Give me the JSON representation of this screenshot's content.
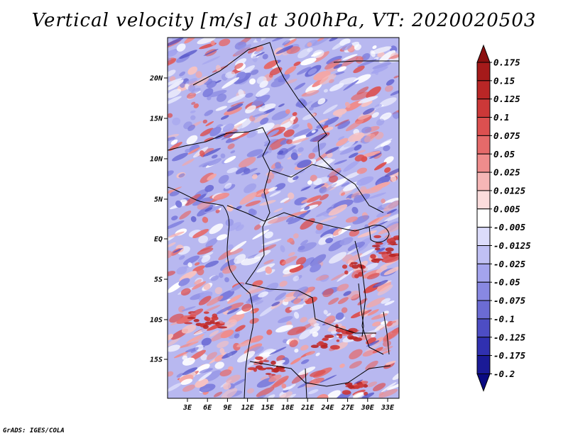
{
  "title": "Vertical velocity [m/s] at 300hPa, VT: 2020020503",
  "credit": "GrADS: IGES/COLA",
  "map": {
    "lat_labels": [
      "20N",
      "15N",
      "10N",
      "5N",
      "EQ",
      "5S",
      "10S",
      "15S"
    ],
    "lon_labels": [
      "3E",
      "6E",
      "9E",
      "12E",
      "15E",
      "18E",
      "21E",
      "24E",
      "27E",
      "30E",
      "33E"
    ]
  },
  "colorbar": {
    "levels": [
      "0.175",
      "0.15",
      "0.125",
      "0.1",
      "0.075",
      "0.05",
      "0.025",
      "0.0125",
      "0.005",
      "-0.005",
      "-0.0125",
      "-0.025",
      "-0.05",
      "-0.075",
      "-0.1",
      "-0.125",
      "-0.175",
      "-0.2"
    ],
    "colors": [
      "#8b1010",
      "#a51a1a",
      "#b92626",
      "#cc3838",
      "#dc5050",
      "#e56a6a",
      "#ef8c8c",
      "#f6b6b6",
      "#fbdcdc",
      "#ffffff",
      "#dcdcfb",
      "#c0c0f4",
      "#a4a4ee",
      "#8888e2",
      "#6b6bd4",
      "#4d4dc4",
      "#3030b0",
      "#1a1a96",
      "#0a0a82"
    ]
  }
}
